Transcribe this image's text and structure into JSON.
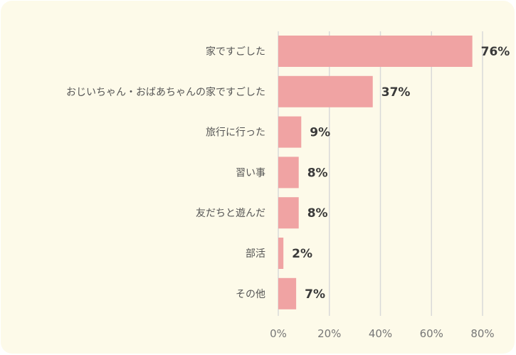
{
  "chart_data": {
    "type": "bar",
    "orientation": "horizontal",
    "categories": [
      "家ですごした",
      "おじいちゃん・おばあちゃんの家ですごした",
      "旅行に行った",
      "習い事",
      "友だちと遊んだ",
      "部活",
      "その他"
    ],
    "values": [
      76,
      37,
      9,
      8,
      8,
      2,
      7
    ],
    "value_labels": [
      "76%",
      "37%",
      "9%",
      "8%",
      "8%",
      "2%",
      "7%"
    ],
    "x_ticks": [
      "0%",
      "20%",
      "40%",
      "60%",
      "80%"
    ],
    "xlim": [
      0,
      80
    ],
    "grid": true,
    "bar_color": "#f0a3a3",
    "grid_color": "#d9d9d9",
    "background": "#fdfae9"
  }
}
